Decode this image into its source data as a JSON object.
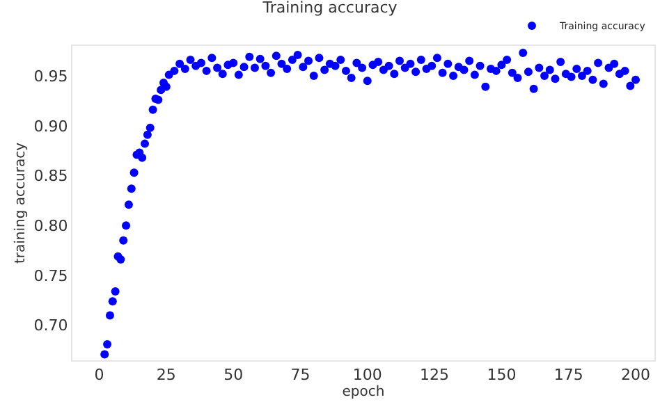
{
  "chart_data": {
    "type": "scatter",
    "title": "Training accuracy",
    "xlabel": "epoch",
    "ylabel": "training accuracy",
    "legend": "top right",
    "marker": "circle",
    "grid": false,
    "xlim": [
      -10,
      207
    ],
    "xticks": [
      0,
      25,
      50,
      75,
      100,
      125,
      150,
      175,
      200
    ],
    "ylim": [
      0.665,
      0.98
    ],
    "yticks": [
      {
        "value": 0.7,
        "label": "0.70"
      },
      {
        "value": 0.75,
        "label": "0.75"
      },
      {
        "value": 0.8,
        "label": "0.80"
      },
      {
        "value": 0.85,
        "label": "0.85"
      },
      {
        "value": 0.9,
        "label": "0.90"
      },
      {
        "value": 0.95,
        "label": "0.95"
      }
    ],
    "x": [
      2,
      3,
      4,
      5,
      6,
      7,
      8,
      9,
      10,
      11,
      12,
      13,
      14,
      15,
      16,
      17,
      18,
      19,
      20,
      21,
      22,
      23,
      24,
      25,
      26,
      28,
      30,
      32,
      34,
      36,
      38,
      40,
      42,
      44,
      46,
      48,
      50,
      52,
      54,
      56,
      58,
      60,
      62,
      64,
      66,
      68,
      70,
      72,
      74,
      76,
      78,
      80,
      82,
      84,
      86,
      88,
      90,
      92,
      94,
      96,
      98,
      100,
      102,
      104,
      106,
      108,
      110,
      112,
      114,
      116,
      118,
      120,
      122,
      124,
      126,
      128,
      130,
      132,
      134,
      136,
      138,
      140,
      142,
      144,
      146,
      148,
      150,
      152,
      154,
      156,
      158,
      160,
      162,
      164,
      166,
      168,
      170,
      172,
      174,
      176,
      178,
      180,
      182,
      184,
      186,
      188,
      190,
      192,
      194,
      196,
      198,
      200
    ],
    "series": [
      {
        "name": "Training accuracy",
        "color": "#0000ff",
        "values": [
          0.671,
          0.681,
          0.71,
          0.724,
          0.734,
          0.769,
          0.766,
          0.785,
          0.8,
          0.821,
          0.837,
          0.853,
          0.871,
          0.873,
          0.868,
          0.882,
          0.891,
          0.898,
          0.916,
          0.927,
          0.926,
          0.936,
          0.943,
          0.939,
          0.951,
          0.955,
          0.962,
          0.957,
          0.966,
          0.96,
          0.963,
          0.955,
          0.968,
          0.958,
          0.952,
          0.961,
          0.963,
          0.951,
          0.959,
          0.969,
          0.958,
          0.967,
          0.96,
          0.953,
          0.97,
          0.962,
          0.957,
          0.966,
          0.971,
          0.959,
          0.965,
          0.95,
          0.968,
          0.956,
          0.962,
          0.96,
          0.966,
          0.955,
          0.948,
          0.963,
          0.958,
          0.945,
          0.961,
          0.964,
          0.956,
          0.96,
          0.952,
          0.965,
          0.958,
          0.962,
          0.954,
          0.966,
          0.957,
          0.96,
          0.968,
          0.953,
          0.962,
          0.95,
          0.959,
          0.956,
          0.965,
          0.951,
          0.96,
          0.939,
          0.957,
          0.955,
          0.961,
          0.966,
          0.953,
          0.948,
          0.973,
          0.954,
          0.937,
          0.958,
          0.95,
          0.956,
          0.947,
          0.964,
          0.952,
          0.949,
          0.957,
          0.95,
          0.955,
          0.946,
          0.963,
          0.942,
          0.958,
          0.962,
          0.952,
          0.955,
          0.94,
          0.946
        ]
      }
    ]
  }
}
